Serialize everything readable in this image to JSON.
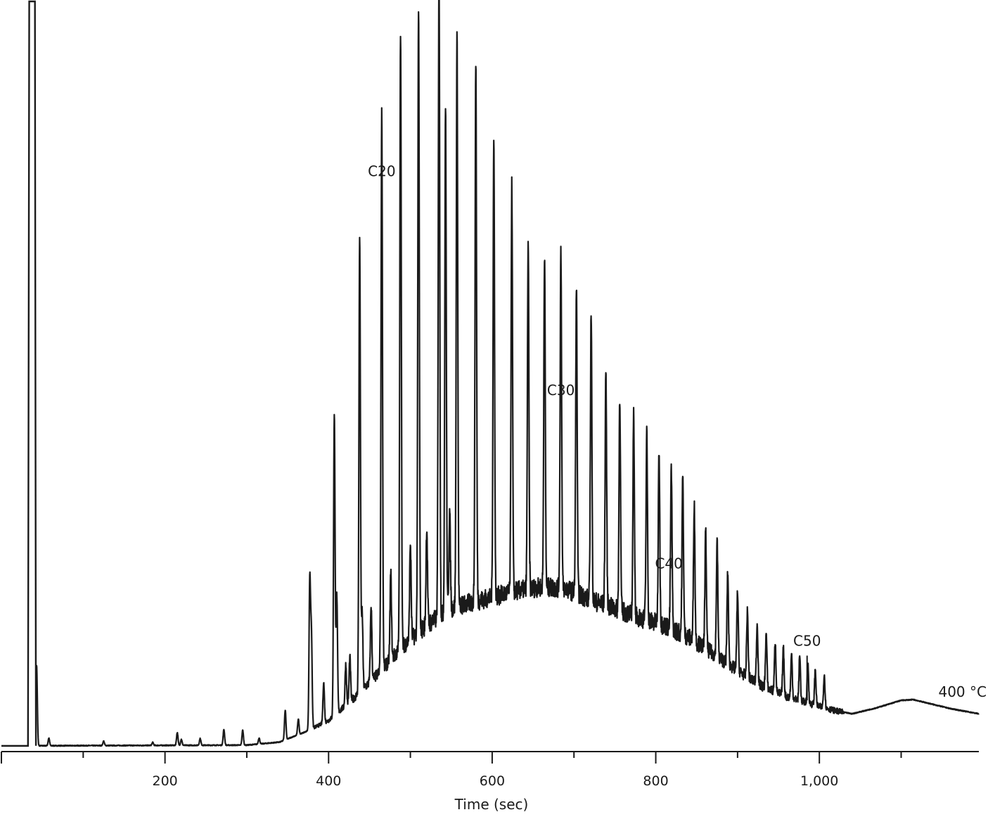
{
  "chart_data": {
    "type": "line",
    "title": "",
    "xlabel": "Time (sec)",
    "ylabel": "",
    "xlim": [
      0,
      1195
    ],
    "ylim": [
      0,
      100
    ],
    "grid": false,
    "legend": "none",
    "line_color": "#1a1a1a",
    "x_ticks": [
      0,
      200,
      400,
      600,
      800,
      1000
    ],
    "x_tick_labels": [
      "",
      "200",
      "400",
      "600",
      "800",
      "1,000"
    ],
    "minor_tick_step": 100,
    "solvent_peak": {
      "start": 34,
      "end": 41,
      "height": 100
    },
    "hump": [
      [
        0,
        0.2
      ],
      [
        300,
        0.3
      ],
      [
        340,
        0.7
      ],
      [
        370,
        2.0
      ],
      [
        400,
        3.6
      ],
      [
        430,
        6.5
      ],
      [
        460,
        9.8
      ],
      [
        490,
        13.5
      ],
      [
        520,
        16.4
      ],
      [
        550,
        18.6
      ],
      [
        580,
        19.6
      ],
      [
        600,
        20.1
      ],
      [
        630,
        21.0
      ],
      [
        660,
        21.5
      ],
      [
        690,
        21.3
      ],
      [
        720,
        19.8
      ],
      [
        750,
        18.6
      ],
      [
        780,
        17.4
      ],
      [
        810,
        16.4
      ],
      [
        840,
        14.8
      ],
      [
        870,
        12.6
      ],
      [
        900,
        10.3
      ],
      [
        930,
        8.2
      ],
      [
        960,
        6.8
      ],
      [
        990,
        5.8
      ],
      [
        1020,
        4.9
      ],
      [
        1040,
        4.5
      ],
      [
        1070,
        5.3
      ],
      [
        1100,
        6.3
      ],
      [
        1115,
        6.4
      ],
      [
        1130,
        6.0
      ],
      [
        1160,
        5.2
      ],
      [
        1195,
        4.5
      ]
    ],
    "peaks": [
      {
        "x": 43,
        "height": 10.8
      },
      {
        "x": 58,
        "height": 1.0
      },
      {
        "x": 125,
        "height": 0.6
      },
      {
        "x": 185,
        "height": 0.4
      },
      {
        "x": 215,
        "height": 1.7
      },
      {
        "x": 220,
        "height": 0.8
      },
      {
        "x": 243,
        "height": 0.9
      },
      {
        "x": 272,
        "height": 2.1
      },
      {
        "x": 295,
        "height": 2.0
      },
      {
        "x": 315,
        "height": 0.8
      },
      {
        "x": 347,
        "height": 4.0
      },
      {
        "x": 363,
        "height": 2.1
      },
      {
        "x": 377,
        "height": 19.9
      },
      {
        "x": 379,
        "height": 12.4
      },
      {
        "x": 394,
        "height": 5.4
      },
      {
        "x": 407,
        "height": 40.5
      },
      {
        "x": 410,
        "height": 15.9
      },
      {
        "x": 421,
        "height": 5.5
      },
      {
        "x": 426,
        "height": 6.0
      },
      {
        "x": 438,
        "height": 61.1
      },
      {
        "x": 441,
        "height": 10.5
      },
      {
        "x": 452,
        "height": 10.1
      },
      {
        "x": 465,
        "height": 74.8
      },
      {
        "x": 476,
        "height": 11.5
      },
      {
        "x": 488,
        "height": 83.1
      },
      {
        "x": 500,
        "height": 12.9
      },
      {
        "x": 510,
        "height": 83.2
      },
      {
        "x": 520,
        "height": 13.1
      },
      {
        "x": 535,
        "height": 86.8
      },
      {
        "x": 543,
        "height": 67.9
      },
      {
        "x": 548,
        "height": 13.2
      },
      {
        "x": 557,
        "height": 76.3
      },
      {
        "x": 580,
        "height": 72.7
      },
      {
        "x": 602,
        "height": 61.2
      },
      {
        "x": 624,
        "height": 54.5
      },
      {
        "x": 644,
        "height": 46.5
      },
      {
        "x": 664,
        "height": 44.8
      },
      {
        "x": 684,
        "height": 45.3
      },
      {
        "x": 703,
        "height": 40.6
      },
      {
        "x": 721,
        "height": 38.7
      },
      {
        "x": 739,
        "height": 31.4
      },
      {
        "x": 756,
        "height": 28.8
      },
      {
        "x": 773,
        "height": 26.7
      },
      {
        "x": 789,
        "height": 24.9
      },
      {
        "x": 804,
        "height": 23.1
      },
      {
        "x": 819,
        "height": 21.2
      },
      {
        "x": 833,
        "height": 21.0
      },
      {
        "x": 847,
        "height": 18.2
      },
      {
        "x": 861,
        "height": 15.6
      },
      {
        "x": 875,
        "height": 15.3
      },
      {
        "x": 888,
        "height": 12.1
      },
      {
        "x": 900,
        "height": 10.5
      },
      {
        "x": 912,
        "height": 8.7
      },
      {
        "x": 924,
        "height": 7.9
      },
      {
        "x": 935,
        "height": 7.2
      },
      {
        "x": 946,
        "height": 6.7
      },
      {
        "x": 956,
        "height": 6.3
      },
      {
        "x": 966,
        "height": 5.8
      },
      {
        "x": 976,
        "height": 6.0
      },
      {
        "x": 986,
        "height": 5.1
      },
      {
        "x": 995,
        "height": 4.7
      },
      {
        "x": 1006,
        "height": 4.4
      }
    ],
    "annotations": [
      {
        "text": "C20",
        "x": 465,
        "y": 76.6
      },
      {
        "text": "C30",
        "x": 684,
        "y": 47.2
      },
      {
        "text": "C40",
        "x": 816,
        "y": 24.0
      },
      {
        "text": "C50",
        "x": 985,
        "y": 13.6
      },
      {
        "text": "400 °C",
        "x": 1175,
        "y": 6.8
      }
    ],
    "marker": {
      "x": 985,
      "y_from": 6.3,
      "y_to": 12.3
    }
  }
}
